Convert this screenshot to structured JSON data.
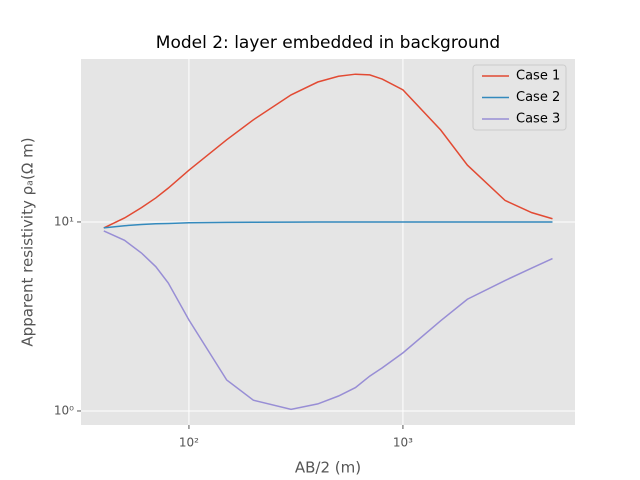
{
  "chart_data": {
    "type": "line",
    "title": "Model 2: layer embedded in background",
    "x_label": "AB/2 (m)",
    "y_label": "Apparent resistivity ρₐ(Ω m)",
    "x": [
      40,
      50,
      60,
      70,
      80,
      100,
      150,
      200,
      300,
      400,
      500,
      600,
      700,
      800,
      1000,
      1500,
      2000,
      3000,
      4000,
      5000
    ],
    "series": [
      {
        "name": "Case 1",
        "color": "#E24A33",
        "values": [
          9.3,
          10.5,
          11.9,
          13.4,
          15.1,
          18.8,
          27.2,
          34.7,
          47,
          55,
          59,
          60.5,
          60,
          57,
          50,
          30.7,
          20,
          13,
          11.2,
          10.4
        ]
      },
      {
        "name": "Case 2",
        "color": "#348ABD",
        "values": [
          9.3,
          9.55,
          9.7,
          9.78,
          9.82,
          9.9,
          9.95,
          9.97,
          9.98,
          9.99,
          10,
          10,
          10,
          10,
          10,
          10,
          10,
          10,
          10,
          10
        ]
      },
      {
        "name": "Case 3",
        "color": "#988ED5",
        "values": [
          8.96,
          8.0,
          6.85,
          5.8,
          4.76,
          3.03,
          1.46,
          1.14,
          1.02,
          1.09,
          1.2,
          1.33,
          1.53,
          1.69,
          2.03,
          3.0,
          3.9,
          4.9,
          5.7,
          6.4
        ]
      }
    ],
    "xlim": [
      31.3,
      6370
    ],
    "ylim": [
      0.843,
      72.8
    ],
    "xticks": [
      {
        "value": 100,
        "label": "10²"
      },
      {
        "value": 1000,
        "label": "10³"
      }
    ],
    "yticks": [
      {
        "value": 1,
        "label": "10⁰"
      },
      {
        "value": 10,
        "label": "10¹"
      }
    ],
    "xscale": "log",
    "yscale": "log",
    "grid": true,
    "legend": "upper right"
  }
}
